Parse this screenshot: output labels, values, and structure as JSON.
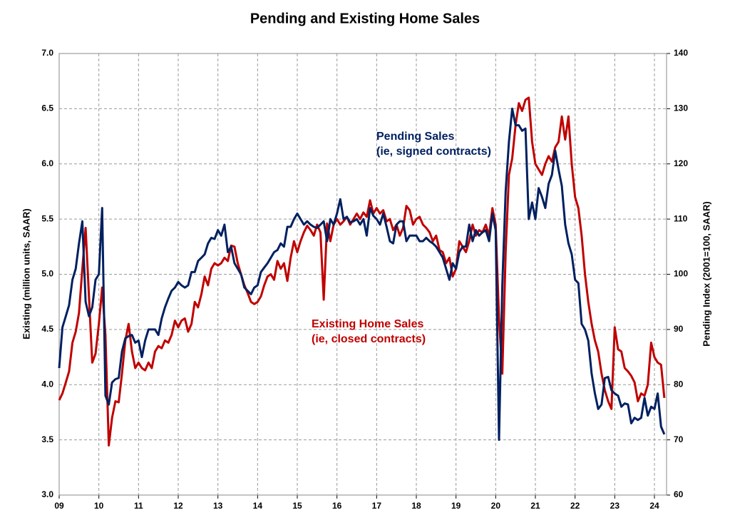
{
  "chart_data": {
    "type": "line",
    "title": "Pending and Existing Home Sales",
    "y_label": "Existing (million units, SAAR)",
    "y2_label": "Pending Index (2001=100, SAAR)",
    "annotations": [
      {
        "lines": [
          "Pending Sales",
          "(ie, signed contracts)"
        ],
        "color": "#002060"
      },
      {
        "lines": [
          "Existing Home Sales",
          "(ie, closed contracts)"
        ],
        "color": "#c00000"
      }
    ],
    "grid": true,
    "categories": [
      "09",
      null,
      null,
      null,
      null,
      null,
      null,
      null,
      null,
      null,
      null,
      null,
      "10",
      null,
      null,
      null,
      null,
      null,
      null,
      null,
      null,
      null,
      null,
      null,
      "11",
      null,
      null,
      null,
      null,
      null,
      null,
      null,
      null,
      null,
      null,
      null,
      "12",
      null,
      null,
      null,
      null,
      null,
      null,
      null,
      null,
      null,
      null,
      null,
      "13",
      null,
      null,
      null,
      null,
      null,
      null,
      null,
      null,
      null,
      null,
      null,
      "14",
      null,
      null,
      null,
      null,
      null,
      null,
      null,
      null,
      null,
      null,
      null,
      "15",
      null,
      null,
      null,
      null,
      null,
      null,
      null,
      null,
      null,
      null,
      null,
      "16",
      null,
      null,
      null,
      null,
      null,
      null,
      null,
      null,
      null,
      null,
      null,
      "17",
      null,
      null,
      null,
      null,
      null,
      null,
      null,
      null,
      null,
      null,
      null,
      "18",
      null,
      null,
      null,
      null,
      null,
      null,
      null,
      null,
      null,
      null,
      null,
      "19",
      null,
      null,
      null,
      null,
      null,
      null,
      null,
      null,
      null,
      null,
      null,
      "20",
      null,
      null,
      null,
      null,
      null,
      null,
      null,
      null,
      null,
      null,
      null,
      "21",
      null,
      null,
      null,
      null,
      null,
      null,
      null,
      null,
      null,
      null,
      null,
      "22",
      null,
      null,
      null,
      null,
      null,
      null,
      null,
      null,
      null,
      null,
      null,
      "23",
      null,
      null,
      null,
      null,
      null,
      null,
      null,
      null,
      null,
      null,
      null,
      "24",
      null,
      null,
      null
    ],
    "ylim": [
      3,
      7
    ],
    "yticks": [
      {
        "value": 3,
        "label": "3.0"
      },
      {
        "value": 3.5,
        "label": "3.5"
      },
      {
        "value": 4,
        "label": "4.0"
      },
      {
        "value": 4.5,
        "label": "4.5"
      },
      {
        "value": 5,
        "label": "5.0"
      },
      {
        "value": 5.5,
        "label": "5.5"
      },
      {
        "value": 6,
        "label": "6.0"
      },
      {
        "value": 6.5,
        "label": "6.5"
      },
      {
        "value": 7,
        "label": "7.0"
      }
    ],
    "y2lim": [
      60,
      140
    ],
    "y2ticks": [
      60,
      70,
      80,
      90,
      100,
      110,
      120,
      130,
      140
    ],
    "series": [
      {
        "name": "Existing Home Sales",
        "color": "#c00000",
        "axis": "y",
        "values": [
          3.86,
          3.92,
          4.02,
          4.12,
          4.38,
          4.48,
          4.65,
          5.05,
          5.42,
          4.8,
          4.2,
          4.28,
          4.55,
          4.88,
          4.45,
          3.45,
          3.7,
          3.85,
          3.84,
          4.1,
          4.4,
          4.55,
          4.3,
          4.15,
          4.2,
          4.15,
          4.13,
          4.2,
          4.15,
          4.3,
          4.35,
          4.33,
          4.4,
          4.38,
          4.45,
          4.58,
          4.52,
          4.58,
          4.6,
          4.48,
          4.55,
          4.75,
          4.7,
          4.82,
          4.98,
          4.9,
          5.05,
          5.1,
          5.08,
          5.1,
          5.15,
          5.12,
          5.26,
          5.25,
          5.1,
          5.0,
          4.9,
          4.83,
          4.75,
          4.73,
          4.75,
          4.8,
          4.9,
          4.98,
          5.0,
          4.95,
          5.12,
          5.05,
          5.1,
          4.94,
          5.15,
          5.3,
          5.2,
          5.3,
          5.38,
          5.44,
          5.4,
          5.35,
          5.45,
          5.38,
          4.77,
          5.46,
          5.3,
          5.45,
          5.5,
          5.45,
          5.48,
          5.52,
          5.45,
          5.5,
          5.55,
          5.5,
          5.56,
          5.52,
          5.67,
          5.55,
          5.6,
          5.55,
          5.58,
          5.48,
          5.5,
          5.4,
          5.45,
          5.35,
          5.42,
          5.62,
          5.58,
          5.45,
          5.5,
          5.52,
          5.45,
          5.42,
          5.38,
          5.3,
          5.35,
          5.22,
          5.2,
          5.1,
          5.15,
          4.98,
          5.05,
          5.3,
          5.25,
          5.2,
          5.3,
          5.45,
          5.35,
          5.4,
          5.38,
          5.45,
          5.35,
          5.6,
          5.45,
          4.6,
          4.1,
          5.2,
          5.9,
          6.05,
          6.35,
          6.55,
          6.48,
          6.58,
          6.6,
          6.2,
          6.0,
          5.95,
          5.9,
          6.0,
          6.07,
          6.02,
          6.15,
          6.2,
          6.43,
          6.22,
          6.43,
          6.0,
          5.7,
          5.6,
          5.35,
          5.0,
          4.75,
          4.55,
          4.4,
          4.3,
          4.1,
          3.95,
          3.85,
          3.78,
          4.52,
          4.32,
          4.3,
          4.15,
          4.12,
          4.08,
          4.02,
          3.85,
          3.92,
          3.9,
          4.0,
          4.38,
          4.25,
          4.2,
          4.18,
          3.88
        ]
      },
      {
        "name": "Pending Sales",
        "color": "#002060",
        "axis": "y2",
        "values": [
          83,
          90.4,
          92.4,
          94.4,
          99,
          101,
          105.6,
          109.6,
          95,
          92.4,
          94,
          99,
          100,
          112,
          78,
          76.4,
          80.4,
          81,
          81.2,
          86,
          88.4,
          88.8,
          89,
          87.6,
          88,
          85,
          88,
          90,
          90,
          90,
          89,
          92,
          94,
          95.6,
          97,
          97.6,
          98.6,
          98,
          97.6,
          98,
          100.4,
          100.4,
          102.4,
          103,
          103.6,
          105.6,
          106.6,
          106.4,
          108,
          107,
          109,
          104,
          105,
          102,
          101,
          100,
          97.6,
          97,
          96.4,
          97.6,
          98,
          100.4,
          101.2,
          102,
          103,
          104,
          104.4,
          105.6,
          105,
          108.6,
          108.6,
          110,
          111,
          110,
          109,
          109.6,
          109,
          108.6,
          108.4,
          109,
          109.6,
          106,
          110,
          109,
          111,
          113.6,
          110,
          110.4,
          109.4,
          109.6,
          110,
          109,
          110,
          107,
          112,
          110.6,
          110,
          109,
          111,
          108.6,
          106,
          105.6,
          109,
          109.6,
          109.6,
          106,
          107,
          107,
          107,
          106,
          106,
          106.6,
          106,
          105.6,
          105,
          104,
          103,
          101,
          99,
          102,
          101,
          104,
          105,
          105,
          109,
          106,
          108,
          107,
          107.6,
          108,
          106,
          111,
          108,
          70,
          98,
          115,
          124,
          130,
          127,
          127,
          126,
          126.4,
          110,
          113,
          110,
          115.6,
          114,
          112,
          116.4,
          118,
          122.4,
          119,
          116,
          109,
          105.6,
          103.6,
          99,
          98.4,
          91,
          90,
          88,
          82,
          78.4,
          75.6,
          76.4,
          81.2,
          81.4,
          79,
          78.4,
          78,
          76,
          76.6,
          76.4,
          73,
          74,
          73.6,
          74,
          77.6,
          74.4,
          76,
          75.6,
          78.4,
          72.4,
          71
        ]
      }
    ]
  }
}
